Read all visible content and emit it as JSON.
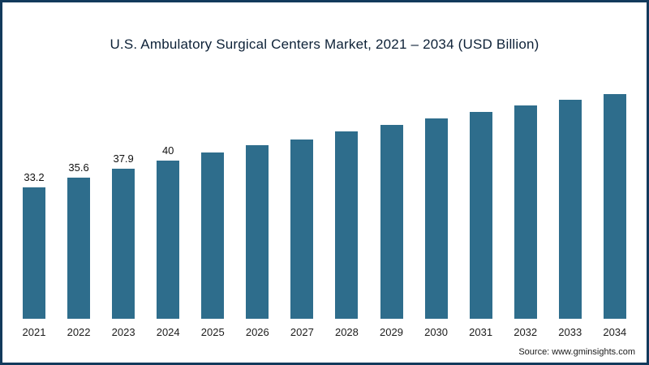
{
  "title": "U.S. Ambulatory Surgical Centers Market, 2021 – 2034 (USD Billion)",
  "source": "Source: www.gminsights.com",
  "colors": {
    "bar": "#2e6d8c",
    "frame": "#123a5c"
  },
  "chart_data": {
    "type": "bar",
    "title": "U.S. Ambulatory Surgical Centers Market, 2021 – 2034 (USD Billion)",
    "categories": [
      "2021",
      "2022",
      "2023",
      "2024",
      "2025",
      "2026",
      "2027",
      "2028",
      "2029",
      "2030",
      "2031",
      "2032",
      "2033",
      "2034"
    ],
    "values": [
      33.2,
      35.6,
      37.9,
      40,
      42,
      43.8,
      45.4,
      47.3,
      49,
      50.6,
      52.2,
      53.9,
      55.3,
      56.8
    ],
    "data_labels": [
      "33.2",
      "35.6",
      "37.9",
      "40",
      "",
      "",
      "",
      "",
      "",
      "",
      "",
      "",
      "",
      ""
    ],
    "xlabel": "",
    "ylabel": "",
    "ylim": [
      0,
      60
    ],
    "grid": false,
    "legend": false,
    "note": "values for 2025-2034 estimated from bar heights; only 2021-2024 have visible data labels"
  }
}
